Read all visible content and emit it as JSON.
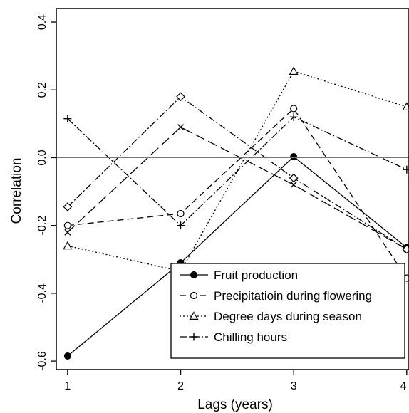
{
  "chart_data": {
    "type": "line",
    "xlabel": "Lags (years)",
    "ylabel": "Correlation",
    "xlim": [
      0.9,
      4.02
    ],
    "ylim": [
      -0.625,
      0.44
    ],
    "x": [
      1,
      2,
      3,
      4
    ],
    "x_ticks": [
      1,
      2,
      3,
      4
    ],
    "x_tick_labels": [
      "1",
      "2",
      "3",
      "4"
    ],
    "y_ticks": [
      -0.6,
      -0.4,
      -0.2,
      0.0,
      0.2,
      0.4
    ],
    "y_tick_labels": [
      "-0.6",
      "-0.4",
      "-0.2",
      "0.0",
      "0.2",
      "0.4"
    ],
    "reference_line_y": 0.0,
    "grid": false,
    "legend_position": "bottom-right",
    "series": [
      {
        "name": "Fruit production",
        "values": [
          -0.585,
          -0.31,
          0.003,
          -0.265
        ],
        "linestyle": "solid",
        "marker": "filled-circle"
      },
      {
        "name": "Precipitatioin during flowering",
        "values": [
          -0.2,
          -0.165,
          0.145,
          -0.355
        ],
        "linestyle": "dashed",
        "marker": "open-circle"
      },
      {
        "name": "Degree days during season",
        "values": [
          -0.26,
          -0.335,
          0.255,
          0.15
        ],
        "linestyle": "dotted",
        "marker": "open-triangle"
      },
      {
        "name": "Chilling hours",
        "values": [
          0.115,
          -0.2,
          0.12,
          -0.035
        ],
        "linestyle": "dashdot",
        "marker": "plus"
      },
      {
        "values": [
          -0.22,
          0.09,
          -0.08,
          -0.27
        ],
        "linestyle": "longdash",
        "marker": "cross"
      },
      {
        "values": [
          -0.145,
          0.18,
          -0.06,
          -0.27
        ],
        "linestyle": "dashdot",
        "marker": "open-diamond"
      }
    ],
    "colors": {
      "line": "#000000",
      "reference": "#777777",
      "background": "#ffffff"
    }
  }
}
